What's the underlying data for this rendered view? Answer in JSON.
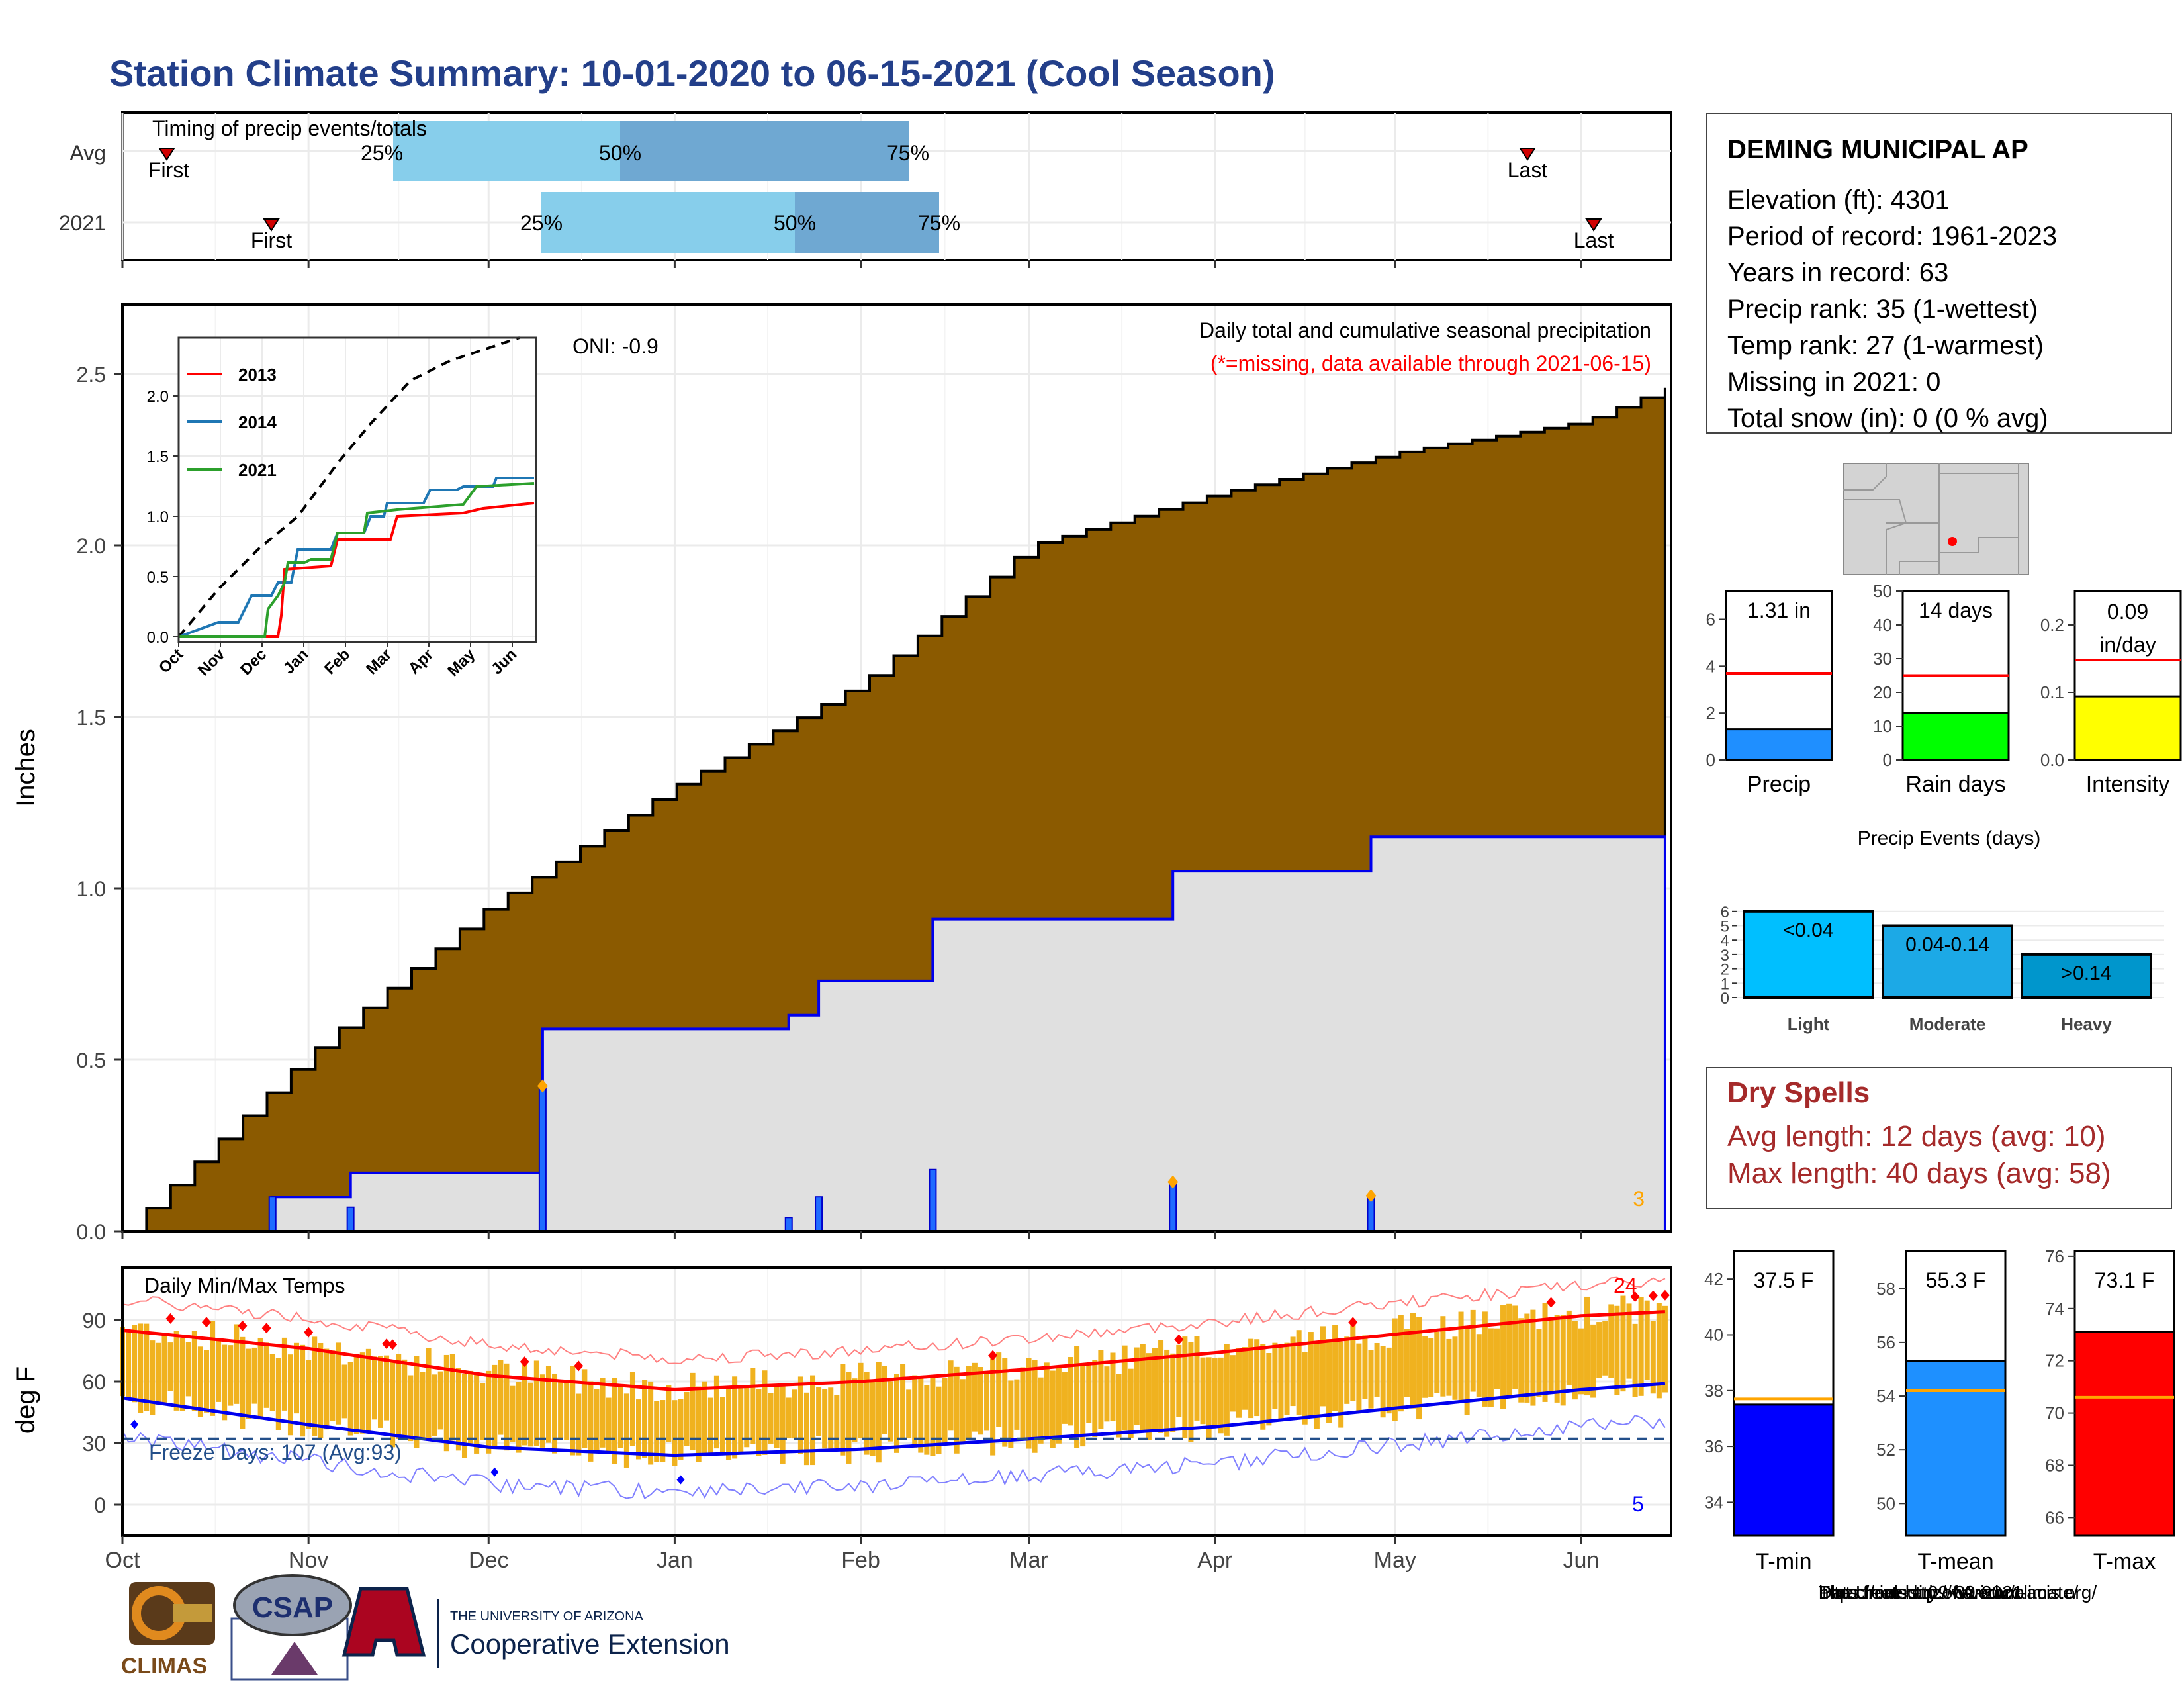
{
  "title": "Station Climate Summary: 10-01-2020 to 06-15-2021 (Cool Season)",
  "colors": {
    "title": "#233f8a",
    "accum_fill": "#8b5a00",
    "panel_bg": "#e0e0e0",
    "season_line": "#0000ee",
    "precip_bar": "#1f6cff",
    "marker": "#ffa500",
    "temp_bar": "#f0b21f",
    "avg_max": "#ff0000",
    "avg_min": "#0000ee",
    "dry": "#a52a2a"
  },
  "timing": {
    "label": "Timing of precip events/totals",
    "rows": [
      {
        "name": "Avg",
        "first": "First",
        "last": "Last",
        "q25": "25%",
        "q50": "50%",
        "q75": "75%"
      },
      {
        "name": "2021",
        "first": "First",
        "last": "Last",
        "q25": "25%",
        "q50": "50%",
        "q75": "75%"
      }
    ]
  },
  "precip": {
    "ylabel": "Inches",
    "oni": "ONI: -0.9",
    "caption": "Daily total and cumulative seasonal precipitation",
    "missing_note": "(*=missing, data available through 2021-06-15)",
    "corner_count": "3",
    "yticks": [
      "0.0",
      "0.5",
      "1.0",
      "1.5",
      "2.0",
      "2.5"
    ]
  },
  "inset": {
    "yticks": [
      "0.0",
      "0.5",
      "1.0",
      "1.5",
      "2.0"
    ],
    "xticks": [
      "Oct",
      "Nov",
      "Dec",
      "Jan",
      "Feb",
      "Mar",
      "Apr",
      "May",
      "Jun"
    ],
    "legend": [
      "2013",
      "2014",
      "2021"
    ]
  },
  "temps": {
    "ylabel": "deg F",
    "title": "Daily Min/Max Temps",
    "freeze": "Freeze Days: 107 (Avg:93)",
    "hot_count": "24",
    "cold_count": "5",
    "yticks": [
      "0",
      "30",
      "60",
      "90"
    ]
  },
  "months": [
    "Oct",
    "Nov",
    "Dec",
    "Jan",
    "Feb",
    "Mar",
    "Apr",
    "May",
    "Jun"
  ],
  "station": {
    "name": "DEMING MUNICIPAL AP",
    "lines": [
      "Elevation (ft): 4301",
      "Period of record: 1961-2023",
      "Years in record: 63",
      "Precip rank: 35 (1-wettest)",
      "Temp rank: 27 (1-warmest)",
      "Missing in 2021: 0",
      "Total snow (in): 0 (0 % avg)"
    ]
  },
  "mini_bars": [
    {
      "label": "Precip",
      "value_text": "1.31 in",
      "value": 1.31,
      "avg": 3.7,
      "ymax": 7.2,
      "ticks": [
        "0",
        "2",
        "4",
        "6"
      ],
      "color": "#1f8fff"
    },
    {
      "label": "Rain days",
      "value_text": "14 days",
      "value": 14,
      "avg": 25,
      "ymax": 50,
      "ticks": [
        "0",
        "10",
        "20",
        "30",
        "40",
        "50"
      ],
      "color": "#00ff00"
    },
    {
      "label": "Intensity",
      "value_text": "0.09 in/day",
      "value": 0.094,
      "avg": 0.148,
      "ymax": 0.25,
      "ticks": [
        "0.0",
        "0.1",
        "0.2"
      ],
      "color": "#ffff00"
    }
  ],
  "events": {
    "title": "Precip Events (days)",
    "yticks": [
      "0",
      "1",
      "2",
      "3",
      "4",
      "5",
      "6"
    ],
    "bars": [
      {
        "label": "Light",
        "name": "<0.04",
        "value": 6,
        "color": "#00bfff"
      },
      {
        "label": "Moderate",
        "name": "0.04-0.14",
        "value": 5,
        "color": "#1ca9e6"
      },
      {
        "label": "Heavy",
        "name": ">0.14",
        "value": 3,
        "color": "#0096cc"
      }
    ]
  },
  "dry_spells": {
    "title": "Dry Spells",
    "avg": "Avg length: 12 days (avg: 10)",
    "max": "Max length: 40 days (avg: 58)"
  },
  "temp_bars": [
    {
      "label": "T-min",
      "value_text": "37.5 F",
      "value": 37.5,
      "avg": 37.7,
      "ymin": 32.8,
      "ymax": 43,
      "ticks": [
        "34",
        "36",
        "38",
        "40",
        "42"
      ],
      "color": "#0000ff"
    },
    {
      "label": "T-mean",
      "value_text": "55.3 F",
      "value": 55.3,
      "avg": 54.2,
      "ymin": 48.8,
      "ymax": 59.4,
      "ticks": [
        "50",
        "52",
        "54",
        "56",
        "58"
      ],
      "color": "#1e90ff"
    },
    {
      "label": "T-max",
      "value_text": "73.1 F",
      "value": 73.1,
      "avg": 70.6,
      "ymin": 65.3,
      "ymax": 76.2,
      "ticks": [
        "66",
        "68",
        "70",
        "72",
        "74",
        "76"
      ],
      "color": "#ff0000"
    }
  ],
  "credits": [
    "Data from http://www.rcc-acis.org/",
    "Plot created: 09-30-2021",
    "The University of Arizona",
    "https://cals.arizona.edu/climate/"
  ],
  "logos": {
    "climas": "CLIMAS",
    "csap": "CSAP",
    "ua_small": "THE UNIVERSITY OF ARIZONA",
    "ua_ext": "Cooperative Extension"
  },
  "chart_data": [
    {
      "type": "area",
      "title": "Daily total and cumulative seasonal precipitation",
      "ylabel": "Inches",
      "ylim": [
        0,
        2.7
      ],
      "x": [
        "2020-10-01",
        "2020-11-01",
        "2020-12-01",
        "2021-01-01",
        "2021-02-01",
        "2021-03-01",
        "2021-04-01",
        "2021-05-01",
        "2021-06-01",
        "2021-06-15"
      ],
      "series": [
        {
          "name": "cumulative average",
          "values": [
            0.0,
            0.52,
            0.95,
            1.3,
            1.6,
            2.0,
            2.15,
            2.27,
            2.36,
            2.46
          ]
        },
        {
          "name": "cumulative 2021",
          "values": [
            0.0,
            0.1,
            0.17,
            0.59,
            0.85,
            1.05,
            1.19,
            1.31,
            1.31,
            1.31
          ]
        }
      ],
      "daily_events": [
        {
          "date": "2020-10-26",
          "value": 0.1
        },
        {
          "date": "2020-11-08",
          "value": 0.07
        },
        {
          "date": "2020-12-10",
          "value": 0.42
        },
        {
          "date": "2021-01-20",
          "value": 0.04
        },
        {
          "date": "2021-01-25",
          "value": 0.1
        },
        {
          "date": "2021-02-13",
          "value": 0.18
        },
        {
          "date": "2021-03-25",
          "value": 0.14
        },
        {
          "date": "2021-04-27",
          "value": 0.1
        }
      ]
    },
    {
      "type": "line",
      "title": "Daily Min/Max Temps",
      "ylabel": "deg F",
      "ylim": [
        -15,
        105
      ],
      "x": [
        "2020-10-01",
        "2020-11-01",
        "2020-12-01",
        "2021-01-01",
        "2021-02-01",
        "2021-03-01",
        "2021-04-01",
        "2021-05-01",
        "2021-06-01",
        "2021-06-15"
      ],
      "series": [
        {
          "name": "avg max",
          "values": [
            85,
            76,
            63,
            56,
            60,
            66,
            74,
            83,
            92,
            94
          ]
        },
        {
          "name": "avg min",
          "values": [
            52,
            39,
            28,
            24,
            27,
            32,
            38,
            47,
            56,
            59
          ]
        }
      ],
      "freeze_line": 32
    },
    {
      "type": "bar",
      "title": "Precip Events (days)",
      "categories": [
        "Light",
        "Moderate",
        "Heavy"
      ],
      "values": [
        6,
        5,
        3
      ]
    }
  ]
}
